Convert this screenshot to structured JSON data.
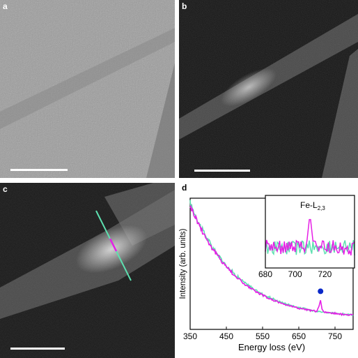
{
  "panels": {
    "a": {
      "label": "a"
    },
    "b": {
      "label": "b"
    },
    "c": {
      "label": "c"
    },
    "d": {
      "label": "d"
    }
  },
  "colors": {
    "magenta": "#e61ee6",
    "green": "#5de0b0",
    "dot": "#0a28c8"
  },
  "chart_data": {
    "type": "line",
    "xlabel": "Energy loss (eV)",
    "ylabel": "Intensity (arb. units)",
    "xlim": [
      350,
      800
    ],
    "xticks": [
      "350",
      "450",
      "550",
      "650",
      "750"
    ],
    "series": [
      {
        "color": "#5de0b0",
        "x": [
          350,
          380,
          410,
          440,
          470,
          500,
          530,
          560,
          590,
          620,
          650,
          680,
          700,
          710,
          720,
          740,
          760,
          780,
          800
        ],
        "y": [
          1.0,
          0.8,
          0.64,
          0.52,
          0.42,
          0.34,
          0.28,
          0.23,
          0.19,
          0.16,
          0.135,
          0.115,
          0.105,
          0.1,
          0.098,
          0.09,
          0.083,
          0.077,
          0.072
        ]
      },
      {
        "color": "#e61ee6",
        "x": [
          350,
          380,
          410,
          440,
          470,
          500,
          530,
          560,
          590,
          620,
          650,
          680,
          700,
          706,
          710,
          714,
          720,
          740,
          760,
          780,
          800
        ],
        "y": [
          0.98,
          0.79,
          0.63,
          0.51,
          0.41,
          0.33,
          0.27,
          0.22,
          0.185,
          0.155,
          0.13,
          0.112,
          0.103,
          0.15,
          0.19,
          0.12,
          0.098,
          0.089,
          0.082,
          0.076,
          0.071
        ]
      }
    ],
    "marker": {
      "x": 710,
      "label": ""
    },
    "inset": {
      "title": "Fe-L",
      "subscript": "2,3",
      "xlim": [
        680,
        740
      ],
      "xticks": [
        "680",
        "700",
        "720"
      ]
    }
  }
}
